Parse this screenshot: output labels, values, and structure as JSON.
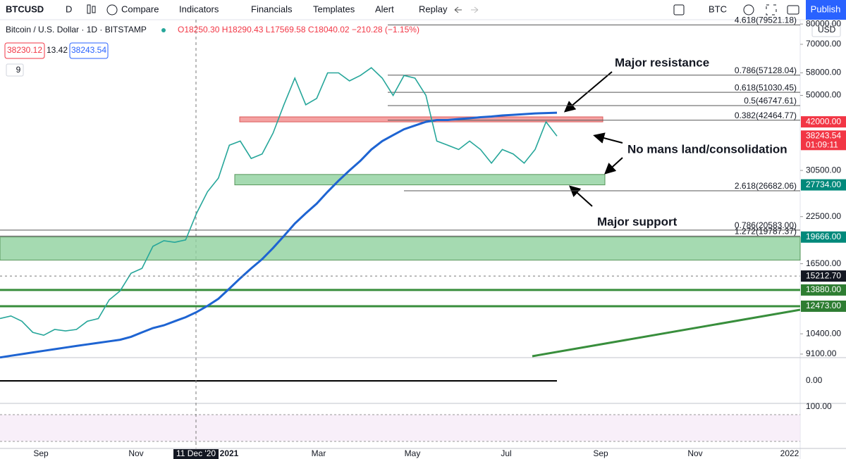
{
  "toolbar": {
    "symbol": "BTCUSD",
    "interval": "D",
    "buttons": [
      "Compare",
      "Indicators",
      "Financials",
      "Templates",
      "Alert",
      "Replay"
    ],
    "currency": "BTC",
    "publish": "Publish"
  },
  "legend": {
    "title": "Bitcoin / U.S. Dollar · 1D · BITSTAMP",
    "ohlc": "O18250.30 H18290.43 L17569.58 C18040.02 −210.28 (−1.15%)",
    "bid": "38230.12",
    "spread": "13.42",
    "ask": "38243.54",
    "indicators": "9"
  },
  "price_axis": {
    "currency": "USD",
    "scale": "log",
    "ylim": [
      8890,
      82300
    ],
    "ticks": [
      {
        "value": 80000,
        "label": "80000.00"
      },
      {
        "value": 70000,
        "label": "70000.00"
      },
      {
        "value": 58000,
        "label": "58000.00"
      },
      {
        "value": 50000,
        "label": "50000.00"
      },
      {
        "value": 30500,
        "label": "30500.00"
      },
      {
        "value": 22500,
        "label": "22500.00"
      },
      {
        "value": 16500,
        "label": "16500.00"
      },
      {
        "value": 10400,
        "label": "10400.00"
      },
      {
        "value": 9100,
        "label": "9100.00"
      }
    ],
    "badges": [
      {
        "value": 42000,
        "label": "42000.00",
        "color": "#f23645"
      },
      {
        "value": 38243.54,
        "label": "38243.54",
        "countdown": "01:09:11",
        "color": "#f23645"
      },
      {
        "value": 27734,
        "label": "27734.00",
        "color": "#00897b"
      },
      {
        "value": 19666,
        "label": "19666.00",
        "color": "#00897b"
      },
      {
        "value": 15212.7,
        "label": "15212.70",
        "color": "#131722"
      },
      {
        "value": 13880,
        "label": "13880.00",
        "color": "#2e7d32"
      },
      {
        "value": 12473,
        "label": "12473.00",
        "color": "#2e7d32"
      }
    ]
  },
  "fib_levels": [
    {
      "label": "4.618(79521.18)",
      "value": 79521.18
    },
    {
      "label": "0.786(57128.04)",
      "value": 57128.04
    },
    {
      "label": "0.618(51030.45)",
      "value": 51030.45
    },
    {
      "label": "0.5(46747.61)",
      "value": 46747.61
    },
    {
      "label": "0.382(42464.77)",
      "value": 42464.77
    },
    {
      "label": "2.618(26682.06)",
      "value": 26682.06
    },
    {
      "label": "0.786(20583.00)",
      "value": 20583
    },
    {
      "label": "1.272(19787.37)",
      "value": 19787.37
    }
  ],
  "zones": [
    {
      "low": 42000,
      "high": 43400,
      "color": "#f28b8b"
    },
    {
      "low": 27734,
      "high": 29700,
      "color": "#8fd19e"
    },
    {
      "low": 16900,
      "high": 19666,
      "color": "#8fd19e"
    }
  ],
  "lines": [
    {
      "value": 13880,
      "color": "#388e3c"
    },
    {
      "value": 12473,
      "color": "#388e3c"
    }
  ],
  "price_series": {
    "color": "#26a69a",
    "closes": [
      11500,
      11700,
      11300,
      10500,
      10300,
      10700,
      10600,
      10700,
      11300,
      11500,
      13000,
      13800,
      15500,
      16000,
      18500,
      19200,
      19000,
      19300,
      23000,
      26500,
      29000,
      36000,
      37000,
      33000,
      34000,
      39000,
      47000,
      56000,
      47000,
      49000,
      58000,
      58000,
      55000,
      57000,
      60000,
      56000,
      50000,
      57000,
      56000,
      50000,
      37000,
      36000,
      35000,
      37000,
      35000,
      32000,
      35000,
      34000,
      32000,
      35000,
      42000,
      38243.54
    ],
    "ma200": [
      8900,
      9000,
      9100,
      9200,
      9300,
      9400,
      9500,
      9600,
      9700,
      9800,
      9900,
      10000,
      10200,
      10500,
      10800,
      11000,
      11300,
      11600,
      12000,
      12500,
      13100,
      14000,
      15000,
      16000,
      17000,
      18300,
      19800,
      21500,
      23000,
      24500,
      26500,
      28500,
      30500,
      32500,
      35000,
      37000,
      38500,
      40000,
      41000,
      42000,
      42500,
      42500,
      42800,
      43000,
      43300,
      43500,
      43800,
      44000,
      44200,
      44400,
      44500,
      44600
    ],
    "ma_color": "#1e64d2"
  },
  "annotations": [
    "Major resistance",
    "No mans land/consolidation",
    "Major support"
  ],
  "oscillators": {
    "macd_tick": "0.00",
    "stoch_tick": "100.00"
  },
  "time_axis": [
    "Sep",
    "Nov",
    "11 Dec '20",
    "2021",
    "Mar",
    "May",
    "Jul",
    "Sep",
    "Nov",
    "2022"
  ]
}
